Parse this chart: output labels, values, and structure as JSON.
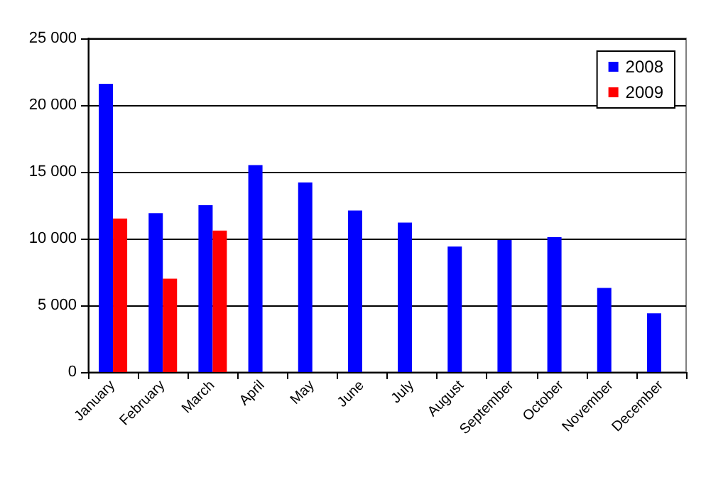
{
  "chart_data": {
    "type": "bar",
    "categories": [
      "January",
      "February",
      "March",
      "April",
      "May",
      "June",
      "July",
      "August",
      "September",
      "October",
      "November",
      "December"
    ],
    "series": [
      {
        "name": "2008",
        "color": "#0000ff",
        "values": [
          21600,
          11900,
          12500,
          15500,
          14200,
          12100,
          11200,
          9400,
          9900,
          10100,
          6300,
          4400
        ]
      },
      {
        "name": "2009",
        "color": "#ff0000",
        "values": [
          11500,
          7000,
          10600,
          null,
          null,
          null,
          null,
          null,
          null,
          null,
          null,
          null
        ]
      }
    ],
    "ylim": [
      0,
      25000
    ],
    "yticks": [
      {
        "value": 0,
        "label": "0"
      },
      {
        "value": 5000,
        "label": "5 000"
      },
      {
        "value": 10000,
        "label": "10 000"
      },
      {
        "value": 15000,
        "label": "15 000"
      },
      {
        "value": 20000,
        "label": "20 000"
      },
      {
        "value": 25000,
        "label": "25 000"
      }
    ],
    "grid": "y",
    "legend": "top right"
  }
}
